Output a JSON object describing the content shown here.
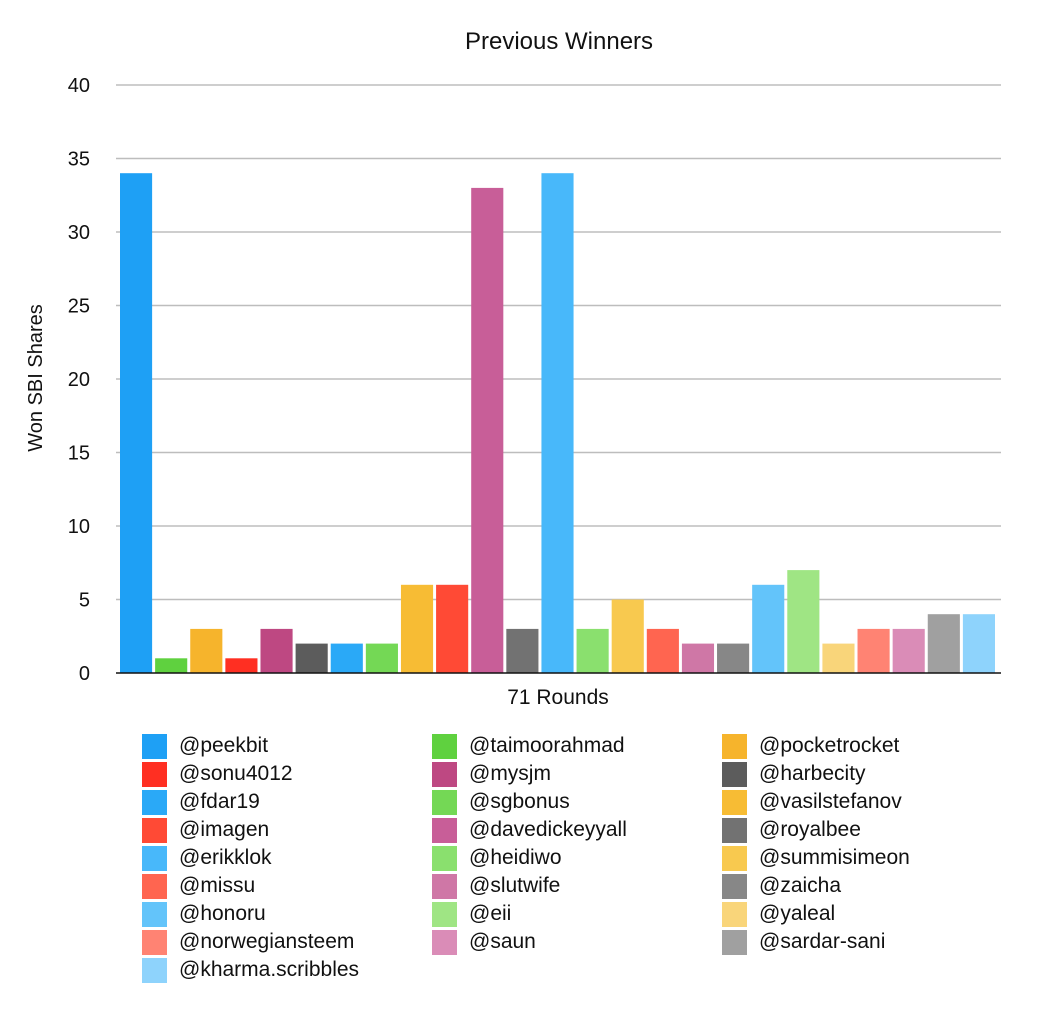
{
  "chart_data": {
    "type": "bar",
    "title": "Previous Winners",
    "xlabel": "71 Rounds",
    "ylabel": "Won SBI Shares",
    "ylim": [
      0,
      40
    ],
    "yticks": [
      0,
      5,
      10,
      15,
      20,
      25,
      30,
      35,
      40
    ],
    "grid": true,
    "legend_position": "bottom",
    "categories": [
      "71 Rounds"
    ],
    "series": [
      {
        "name": "@peekbit",
        "values": [
          34
        ],
        "color": "#1ea0f5"
      },
      {
        "name": "@taimoorahmad",
        "values": [
          1
        ],
        "color": "#5fd13f"
      },
      {
        "name": "@pocketrocket",
        "values": [
          3
        ],
        "color": "#f6b42c"
      },
      {
        "name": "@sonu4012",
        "values": [
          1
        ],
        "color": "#ff2f22"
      },
      {
        "name": "@mysjm",
        "values": [
          3
        ],
        "color": "#be4882"
      },
      {
        "name": "@harbecity",
        "values": [
          2
        ],
        "color": "#5c5c5c"
      },
      {
        "name": "@fdar19",
        "values": [
          2
        ],
        "color": "#2aa9f7"
      },
      {
        "name": "@sgbonus",
        "values": [
          2
        ],
        "color": "#74d855"
      },
      {
        "name": "@vasilstefanov",
        "values": [
          6
        ],
        "color": "#f7bc34"
      },
      {
        "name": "@imagen",
        "values": [
          6
        ],
        "color": "#ff4a35"
      },
      {
        "name": "@davedickeyyall",
        "values": [
          33
        ],
        "color": "#c85e98"
      },
      {
        "name": "@royalbee",
        "values": [
          3
        ],
        "color": "#727272"
      },
      {
        "name": "@erikklok",
        "values": [
          34
        ],
        "color": "#48b8fa"
      },
      {
        "name": "@heidiwo",
        "values": [
          3
        ],
        "color": "#8ae06e"
      },
      {
        "name": "@summisimeon",
        "values": [
          5
        ],
        "color": "#f8c94f"
      },
      {
        "name": "@missu",
        "values": [
          3
        ],
        "color": "#ff6550"
      },
      {
        "name": "@slutwife",
        "values": [
          2
        ],
        "color": "#cf77a6"
      },
      {
        "name": "@zaicha",
        "values": [
          2
        ],
        "color": "#878787"
      },
      {
        "name": "@honoru",
        "values": [
          6
        ],
        "color": "#63c4fa"
      },
      {
        "name": "@eii",
        "values": [
          7
        ],
        "color": "#9fe584"
      },
      {
        "name": "@yaleal",
        "values": [
          2
        ],
        "color": "#f9d57a"
      },
      {
        "name": "@norwegiansteem",
        "values": [
          3
        ],
        "color": "#ff8373"
      },
      {
        "name": "@saun",
        "values": [
          3
        ],
        "color": "#da8cb7"
      },
      {
        "name": "@sardar-sani",
        "values": [
          4
        ],
        "color": "#a0a0a0"
      },
      {
        "name": "@kharma.scribbles",
        "values": [
          4
        ],
        "color": "#8ed3fc"
      }
    ]
  }
}
